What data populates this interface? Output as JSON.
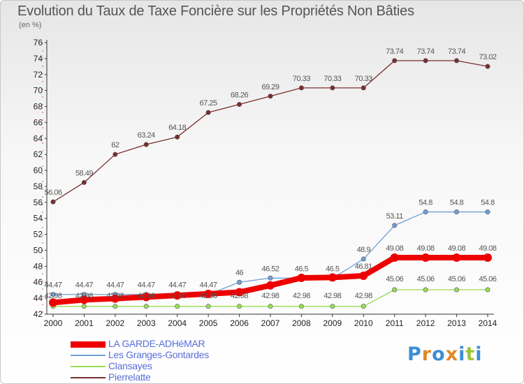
{
  "title": "Evolution du Taux de Taxe Foncière sur les Propriétés Non Bâties",
  "unit_label": "(en %)",
  "logo": {
    "text": "Proxiti",
    "colors": [
      "#3b8ed6",
      "#e0892a",
      "#3b8ed6",
      "#e0892a",
      "#3b8ed6",
      "#9bc53d",
      "#3b8ed6"
    ]
  },
  "chart_data": {
    "type": "line",
    "title": "Evolution du Taux de Taxe Foncière sur les Propriétés Non Bâties",
    "ylabel": "(en %)",
    "xlabel": "",
    "x": [
      2000,
      2001,
      2002,
      2003,
      2004,
      2005,
      2006,
      2007,
      2008,
      2009,
      2010,
      2011,
      2012,
      2013,
      2014
    ],
    "ylim": [
      42,
      76
    ],
    "ytick_step": 2,
    "grid": false,
    "legend_position": "bottom-left",
    "series": [
      {
        "name": "LA GARDE-ADHéMAR",
        "color": "#ee0000",
        "values": [
          43.45,
          43.8,
          43.95,
          44.15,
          44.35,
          44.55,
          44.75,
          45.6,
          46.55,
          46.6,
          46.81,
          49.08,
          49.08,
          49.08,
          49.08
        ],
        "labels": [
          "",
          "",
          "",
          "",
          "",
          "",
          "",
          "",
          "",
          "",
          "46.81",
          "49.08",
          "49.08",
          "49.08",
          "49.08"
        ]
      },
      {
        "name": "Les Granges-Gontardes",
        "color": "#6fa0d8",
        "values": [
          44.47,
          44.47,
          44.47,
          44.47,
          44.47,
          44.47,
          46,
          46.52,
          46.5,
          46.5,
          48.9,
          53.11,
          54.8,
          54.8,
          54.8
        ],
        "labels": [
          "44.47",
          "44.47",
          "44.47",
          "44.47",
          "44.47",
          "44.47",
          "46",
          "46.52",
          "46.5",
          "46.5",
          "48.9",
          "53.11",
          "54.8",
          "54.8",
          "54.8"
        ]
      },
      {
        "name": "Clansayes",
        "color": "#99dd55",
        "values": [
          42.98,
          42.98,
          42.98,
          42.98,
          42.98,
          42.98,
          42.98,
          42.98,
          42.98,
          42.98,
          42.98,
          45.06,
          45.06,
          45.06,
          45.06
        ],
        "labels": [
          "42.98",
          "42.98",
          "42.98",
          "42.98",
          "42.98",
          "42.98",
          "42.98",
          "42.98",
          "42.98",
          "42.98",
          "42.98",
          "45.06",
          "45.06",
          "45.06",
          "45.06"
        ]
      },
      {
        "name": "Pierrelatte",
        "color": "#7a2e2e",
        "values": [
          56.06,
          58.49,
          62,
          63.24,
          64.18,
          67.25,
          68.26,
          69.29,
          70.33,
          70.33,
          70.33,
          73.74,
          73.74,
          73.74,
          73.02
        ],
        "labels": [
          "56.06",
          "58.49",
          "62",
          "63.24",
          "64.18",
          "67.25",
          "68.26",
          "69.29",
          "70.33",
          "70.33",
          "70.33",
          "73.74",
          "73.74",
          "73.74",
          "73.02"
        ]
      }
    ]
  }
}
